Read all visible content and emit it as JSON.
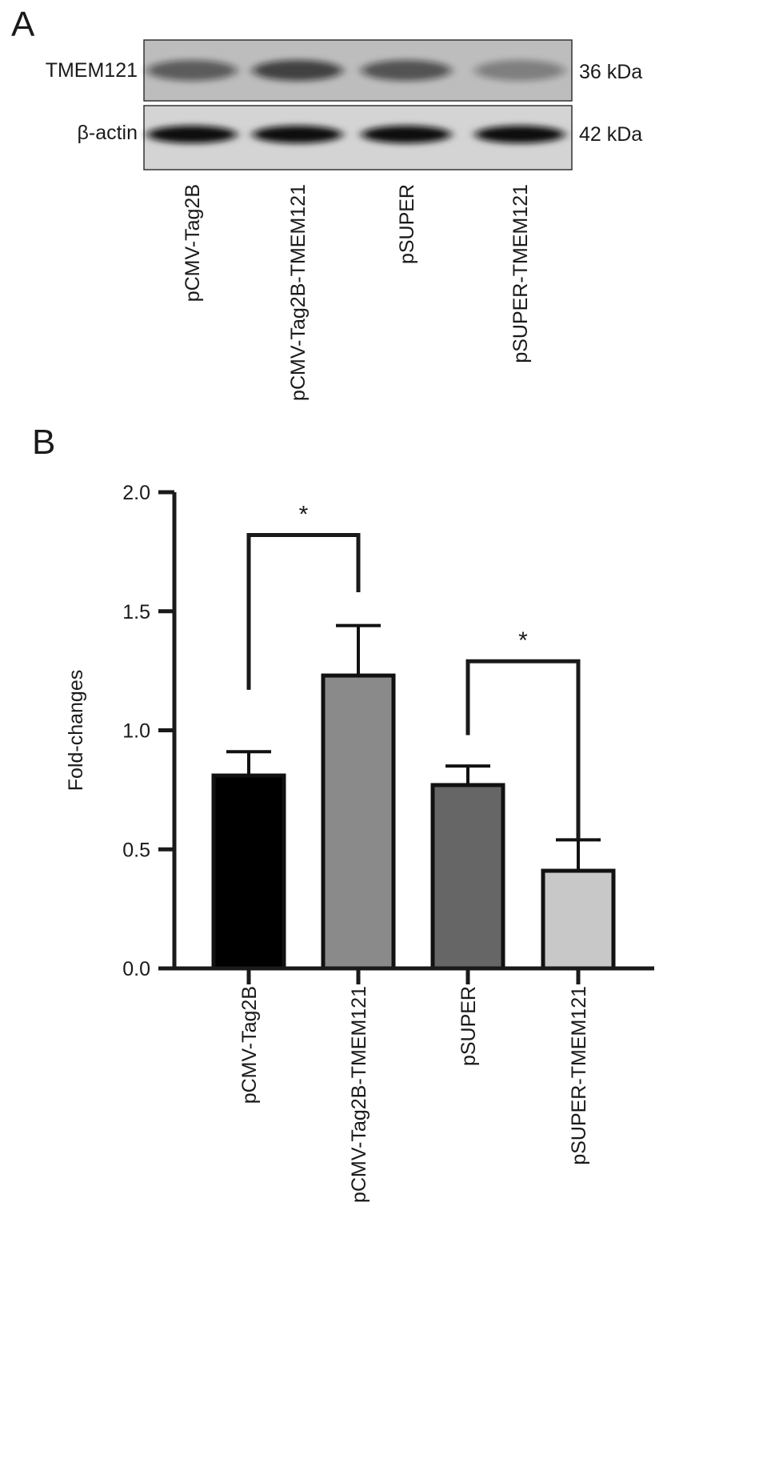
{
  "panel_a": {
    "label": "A",
    "bands": [
      {
        "name": "TMEM121",
        "size": "36 kDa",
        "intensities": [
          0.55,
          0.7,
          0.6,
          0.35
        ]
      },
      {
        "name": "β-actin",
        "size": "42 kDa",
        "intensities": [
          1.0,
          1.0,
          1.0,
          1.0
        ]
      }
    ],
    "lanes": [
      "pCMV-Tag2B",
      "pCMV-Tag2B-TMEM121",
      "pSUPER",
      "pSUPER-TMEM121"
    ]
  },
  "panel_b": {
    "label": "B"
  },
  "chart_data": {
    "type": "bar",
    "categories": [
      "pCMV-Tag2B",
      "pCMV-Tag2B-TMEM121",
      "pSUPER",
      "pSUPER-TMEM121"
    ],
    "values": [
      0.81,
      1.23,
      0.77,
      0.41
    ],
    "errors": [
      0.1,
      0.21,
      0.08,
      0.13
    ],
    "colors": [
      "#000000",
      "#8a8a8a",
      "#666666",
      "#c8c8c8"
    ],
    "xlabel": "",
    "ylabel": "Fold-changes",
    "ylim": [
      0,
      2.0
    ],
    "yticks": [
      "0.0",
      "0.5",
      "1.0",
      "1.5",
      "2.0"
    ],
    "ytick_values": [
      0,
      0.5,
      1.0,
      1.5,
      2.0
    ],
    "significance": [
      {
        "from": 0,
        "to": 1,
        "label": "*",
        "level": 1.82,
        "left_drop": 1.17,
        "right_drop": 1.58
      },
      {
        "from": 2,
        "to": 3,
        "label": "*",
        "level": 1.29,
        "left_drop": 0.98,
        "right_drop": 0.54
      }
    ]
  }
}
